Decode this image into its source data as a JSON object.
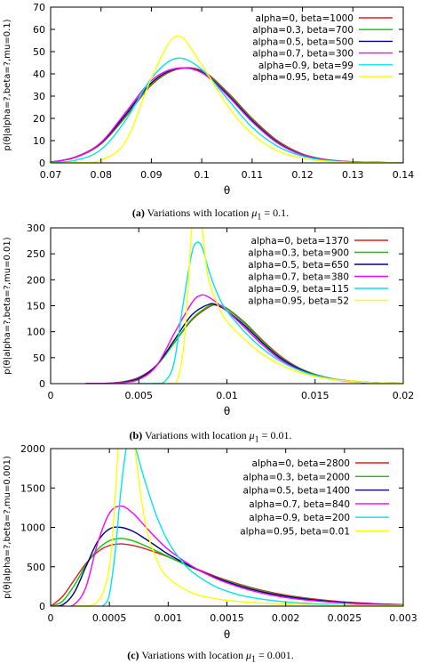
{
  "chart_data": [
    {
      "type": "line",
      "xlabel": "θ",
      "ylabel": "p(θ|alpha=?,beta=?,mu=0.1)",
      "xlim": [
        0.07,
        0.14
      ],
      "ylim": [
        0,
        70
      ],
      "xticks": [
        "0.07",
        "0.08",
        "0.09",
        "0.1",
        "0.11",
        "0.12",
        "0.13",
        "0.14"
      ],
      "xtick_values": [
        0.07,
        0.08,
        0.09,
        0.1,
        0.11,
        0.12,
        0.13,
        0.14
      ],
      "yticks": [
        "0",
        "10",
        "20",
        "30",
        "40",
        "50",
        "60",
        "70"
      ],
      "ytick_values": [
        0,
        10,
        20,
        30,
        40,
        50,
        60,
        70
      ],
      "legend_position": "top-right",
      "series": [
        {
          "name": "alpha=0, beta=1000",
          "color": "#e41a1c",
          "x": [
            0.07,
            0.075,
            0.08,
            0.085,
            0.09,
            0.095,
            0.1,
            0.105,
            0.11,
            0.115,
            0.12,
            0.125,
            0.13,
            0.135,
            0.14
          ],
          "y": [
            0.3,
            2.5,
            8.5,
            21,
            35,
            42,
            41.5,
            32,
            20,
            10,
            4,
            1.4,
            0.5,
            0.2,
            0.05
          ]
        },
        {
          "name": "alpha=0.3, beta=700",
          "color": "#00cc00",
          "x": [
            0.07,
            0.075,
            0.08,
            0.085,
            0.09,
            0.095,
            0.1,
            0.105,
            0.11,
            0.115,
            0.12,
            0.125,
            0.13,
            0.135,
            0.14
          ],
          "y": [
            0.3,
            2.6,
            8.8,
            21.5,
            35.5,
            42.2,
            41,
            31.5,
            19.5,
            9.6,
            3.8,
            1.3,
            0.5,
            0.2,
            0.05
          ]
        },
        {
          "name": "alpha=0.5, beta=500",
          "color": "#00008b",
          "x": [
            0.07,
            0.075,
            0.08,
            0.085,
            0.09,
            0.095,
            0.1,
            0.105,
            0.11,
            0.115,
            0.12,
            0.125,
            0.13,
            0.135,
            0.14
          ],
          "y": [
            0.3,
            2.7,
            9,
            22,
            36,
            42.3,
            40.8,
            31,
            19,
            9.3,
            3.6,
            1.2,
            0.45,
            0.15,
            0.05
          ]
        },
        {
          "name": "alpha=0.7, beta=300",
          "color": "#ff00ff",
          "x": [
            0.07,
            0.075,
            0.08,
            0.085,
            0.09,
            0.095,
            0.1,
            0.105,
            0.11,
            0.115,
            0.12,
            0.125,
            0.13,
            0.135,
            0.14
          ],
          "y": [
            0.3,
            2.6,
            9.2,
            23,
            37,
            42.5,
            40.5,
            30.5,
            18.5,
            9,
            3.5,
            1.2,
            0.45,
            0.15,
            0.05
          ]
        },
        {
          "name": "alpha=0.9, beta=99",
          "color": "#00e5ee",
          "x": [
            0.07,
            0.075,
            0.08,
            0.085,
            0.09,
            0.095,
            0.1,
            0.105,
            0.11,
            0.115,
            0.12,
            0.125,
            0.13,
            0.135,
            0.14
          ],
          "y": [
            0.1,
            1.2,
            6,
            19.5,
            38,
            47,
            42,
            29,
            16,
            7.5,
            3,
            1,
            0.35,
            0.1,
            0.03
          ]
        },
        {
          "name": "alpha=0.95, beta=49",
          "color": "#ffff00",
          "x": [
            0.07,
            0.075,
            0.08,
            0.085,
            0.09,
            0.095,
            0.1,
            0.105,
            0.11,
            0.115,
            0.12,
            0.125,
            0.13,
            0.135,
            0.14
          ],
          "y": [
            0,
            0.1,
            1.2,
            10,
            38,
            57,
            44,
            26,
            13,
            5.5,
            2,
            0.7,
            0.25,
            0.1,
            0.02
          ]
        }
      ]
    },
    {
      "type": "line",
      "xlabel": "θ",
      "ylabel": "p(θ|alpha=?,beta=?,mu=0.01)",
      "xlim": [
        0,
        0.02
      ],
      "ylim": [
        0,
        300
      ],
      "xticks": [
        "0",
        "0.005",
        "0.01",
        "0.015",
        "0.02"
      ],
      "xtick_values": [
        0,
        0.005,
        0.01,
        0.015,
        0.02
      ],
      "yticks": [
        "0",
        "50",
        "100",
        "150",
        "200",
        "250",
        "300"
      ],
      "ytick_values": [
        0,
        50,
        100,
        150,
        200,
        250,
        300
      ],
      "legend_position": "top-right",
      "series": [
        {
          "name": "alpha=0, beta=1370",
          "color": "#e41a1c",
          "x": [
            0.002,
            0.003,
            0.004,
            0.005,
            0.006,
            0.007,
            0.008,
            0.009,
            0.0095,
            0.01,
            0.011,
            0.012,
            0.013,
            0.014,
            0.015,
            0.016,
            0.017,
            0.018,
            0.019,
            0.02
          ],
          "y": [
            0,
            0.5,
            3,
            12,
            35,
            78,
            122,
            148,
            151,
            145,
            118,
            84,
            54,
            32,
            18,
            9.5,
            5,
            2.5,
            1.2,
            0.5
          ]
        },
        {
          "name": "alpha=0.3, beta=900",
          "color": "#00cc00",
          "x": [
            0.002,
            0.003,
            0.004,
            0.005,
            0.006,
            0.007,
            0.008,
            0.009,
            0.0095,
            0.01,
            0.011,
            0.012,
            0.013,
            0.014,
            0.015,
            0.016,
            0.017,
            0.018,
            0.019,
            0.02
          ],
          "y": [
            0,
            0.4,
            2.5,
            11,
            34,
            78,
            124,
            150,
            152,
            144,
            116,
            82,
            52,
            31,
            17,
            9,
            4.8,
            2.4,
            1.1,
            0.5
          ]
        },
        {
          "name": "alpha=0.5, beta=650",
          "color": "#00008b",
          "x": [
            0.002,
            0.003,
            0.004,
            0.005,
            0.006,
            0.007,
            0.008,
            0.009,
            0.0095,
            0.01,
            0.011,
            0.012,
            0.013,
            0.014,
            0.015,
            0.016,
            0.017,
            0.018,
            0.019,
            0.02
          ],
          "y": [
            0,
            0.3,
            2,
            10,
            35,
            83,
            132,
            153,
            150,
            140,
            112,
            79,
            50,
            30,
            16,
            8.5,
            4.5,
            2.2,
            1,
            0.4
          ]
        },
        {
          "name": "alpha=0.7, beta=380",
          "color": "#ff00ff",
          "x": [
            0.002,
            0.003,
            0.004,
            0.005,
            0.006,
            0.007,
            0.008,
            0.0085,
            0.009,
            0.01,
            0.011,
            0.012,
            0.013,
            0.014,
            0.015,
            0.016,
            0.017,
            0.018,
            0.019,
            0.02
          ],
          "y": [
            0,
            0.2,
            1.5,
            8,
            34,
            96,
            155,
            170,
            166,
            140,
            108,
            75,
            47,
            28,
            15,
            8,
            4,
            2,
            0.9,
            0.4
          ]
        },
        {
          "name": "alpha=0.9, beta=115",
          "color": "#00e5ee",
          "x": [
            0.005,
            0.006,
            0.0065,
            0.007,
            0.0075,
            0.008,
            0.0083,
            0.0086,
            0.009,
            0.0095,
            0.01,
            0.011,
            0.012,
            0.013,
            0.014,
            0.015,
            0.016,
            0.017,
            0.018,
            0.019,
            0.02
          ],
          "y": [
            0,
            0.5,
            5,
            40,
            150,
            250,
            272,
            262,
            215,
            170,
            140,
            100,
            68,
            44,
            27,
            16,
            9,
            5,
            2.5,
            1.2,
            0.5
          ]
        },
        {
          "name": "alpha=0.95, beta=52",
          "color": "#ffff00",
          "x": [
            0.006,
            0.0068,
            0.0072,
            0.0076,
            0.008,
            0.0082,
            0.0084,
            0.0086,
            0.0088,
            0.009,
            0.0095,
            0.01,
            0.011,
            0.012,
            0.013,
            0.014,
            0.015,
            0.016,
            0.017,
            0.018,
            0.019,
            0.02
          ],
          "y": [
            0,
            0.5,
            8,
            90,
            300,
            380,
            380,
            300,
            235,
            195,
            150,
            120,
            85,
            57,
            37,
            23,
            14,
            8,
            4.5,
            2.3,
            1.1,
            0.5
          ]
        }
      ]
    },
    {
      "type": "line",
      "xlabel": "θ",
      "ylabel": "p(θ|alpha=?,beta=?,mu=0.001)",
      "xlim": [
        0,
        0.003
      ],
      "ylim": [
        0,
        2000
      ],
      "xticks": [
        "0",
        "0.0005",
        "0.001",
        "0.0015",
        "0.002",
        "0.0025",
        "0.003"
      ],
      "xtick_values": [
        0,
        0.0005,
        0.001,
        0.0015,
        0.002,
        0.0025,
        0.003
      ],
      "yticks": [
        "0",
        "500",
        "1000",
        "1500",
        "2000"
      ],
      "ytick_values": [
        0,
        500,
        1000,
        1500,
        2000
      ],
      "legend_position": "top-right",
      "series": [
        {
          "name": "alpha=0, beta=2800",
          "color": "#e41a1c",
          "x": [
            0,
            0.0001,
            0.0002,
            0.0003,
            0.0004,
            0.0005,
            0.0006,
            0.0007,
            0.0008,
            0.0009,
            0.001,
            0.0012,
            0.0014,
            0.0016,
            0.0018,
            0.002,
            0.0022,
            0.0024,
            0.0026,
            0.0028,
            0.003
          ],
          "y": [
            0,
            120,
            330,
            540,
            690,
            770,
            790,
            770,
            730,
            680,
            625,
            500,
            380,
            280,
            200,
            140,
            98,
            66,
            44,
            29,
            19
          ]
        },
        {
          "name": "alpha=0.3, beta=2000",
          "color": "#00cc00",
          "x": [
            0,
            0.0001,
            0.0002,
            0.0003,
            0.0004,
            0.0005,
            0.0006,
            0.0007,
            0.0008,
            0.0009,
            0.001,
            0.0012,
            0.0014,
            0.0016,
            0.0018,
            0.002,
            0.0022,
            0.0024,
            0.0026,
            0.0028,
            0.003
          ],
          "y": [
            0,
            60,
            260,
            520,
            720,
            830,
            860,
            830,
            770,
            700,
            630,
            490,
            370,
            270,
            190,
            130,
            90,
            60,
            40,
            26,
            17
          ]
        },
        {
          "name": "alpha=0.5, beta=1400",
          "color": "#00008b",
          "x": [
            0,
            0.0001,
            0.0002,
            0.0003,
            0.0004,
            0.0005,
            0.0006,
            0.0007,
            0.0008,
            0.0009,
            0.001,
            0.0012,
            0.0014,
            0.0016,
            0.0018,
            0.002,
            0.0022,
            0.0024,
            0.0026,
            0.0028,
            0.003
          ],
          "y": [
            0,
            15,
            170,
            500,
            820,
            980,
            1000,
            950,
            860,
            760,
            660,
            500,
            365,
            260,
            180,
            125,
            85,
            57,
            38,
            25,
            16
          ]
        },
        {
          "name": "alpha=0.7, beta=840",
          "color": "#ff00ff",
          "x": [
            0,
            0.0001,
            0.0002,
            0.0003,
            0.0004,
            0.0005,
            0.0006,
            0.0007,
            0.0008,
            0.0009,
            0.001,
            0.0012,
            0.0014,
            0.0016,
            0.0018,
            0.002,
            0.0022,
            0.0024,
            0.0026,
            0.0028,
            0.003
          ],
          "y": [
            0,
            0,
            20,
            240,
            800,
            1180,
            1270,
            1180,
            1020,
            860,
            720,
            510,
            355,
            245,
            165,
            110,
            74,
            49,
            32,
            21,
            14
          ]
        },
        {
          "name": "alpha=0.9, beta=200",
          "color": "#00e5ee",
          "x": [
            0.0004,
            0.00045,
            0.0005,
            0.00055,
            0.0006,
            0.00065,
            0.0007,
            0.0008,
            0.0009,
            0.001,
            0.0011,
            0.0012,
            0.0014,
            0.0016,
            0.0018,
            0.002,
            0.0022,
            0.0024,
            0.0026,
            0.0028,
            0.003
          ],
          "y": [
            0,
            10,
            150,
            700,
            1500,
            2050,
            2100,
            1600,
            1150,
            820,
            600,
            440,
            250,
            145,
            88,
            54,
            34,
            22,
            14,
            9,
            6
          ]
        },
        {
          "name": "alpha=0.95, beta=0.01",
          "color": "#ffff00",
          "x": [
            0,
            0.0002,
            0.0004,
            0.0005,
            0.00055,
            0.0006,
            0.00065,
            0.0007,
            0.0008,
            0.0009,
            0.001,
            0.0012,
            0.0014,
            0.0016,
            0.0018,
            0.002,
            0.0022,
            0.0024,
            0.0026,
            0.0028,
            0.003
          ],
          "y": [
            0,
            0,
            60,
            500,
            1400,
            2600,
            2800,
            2200,
            1100,
            600,
            360,
            170,
            95,
            60,
            40,
            28,
            20,
            15,
            11,
            9,
            7
          ]
        }
      ]
    }
  ],
  "captions": [
    {
      "label": "(a)",
      "text": " Variations with location ",
      "math_symbol": "μ",
      "math_sub": "1",
      "math_tail": " = 0.1."
    },
    {
      "label": "(b)",
      "text": " Variations with location ",
      "math_symbol": "μ",
      "math_sub": "1",
      "math_tail": " = 0.01."
    },
    {
      "label": "(c)",
      "text": " Variations with location ",
      "math_symbol": "μ",
      "math_sub": "1",
      "math_tail": " = 0.001."
    }
  ]
}
